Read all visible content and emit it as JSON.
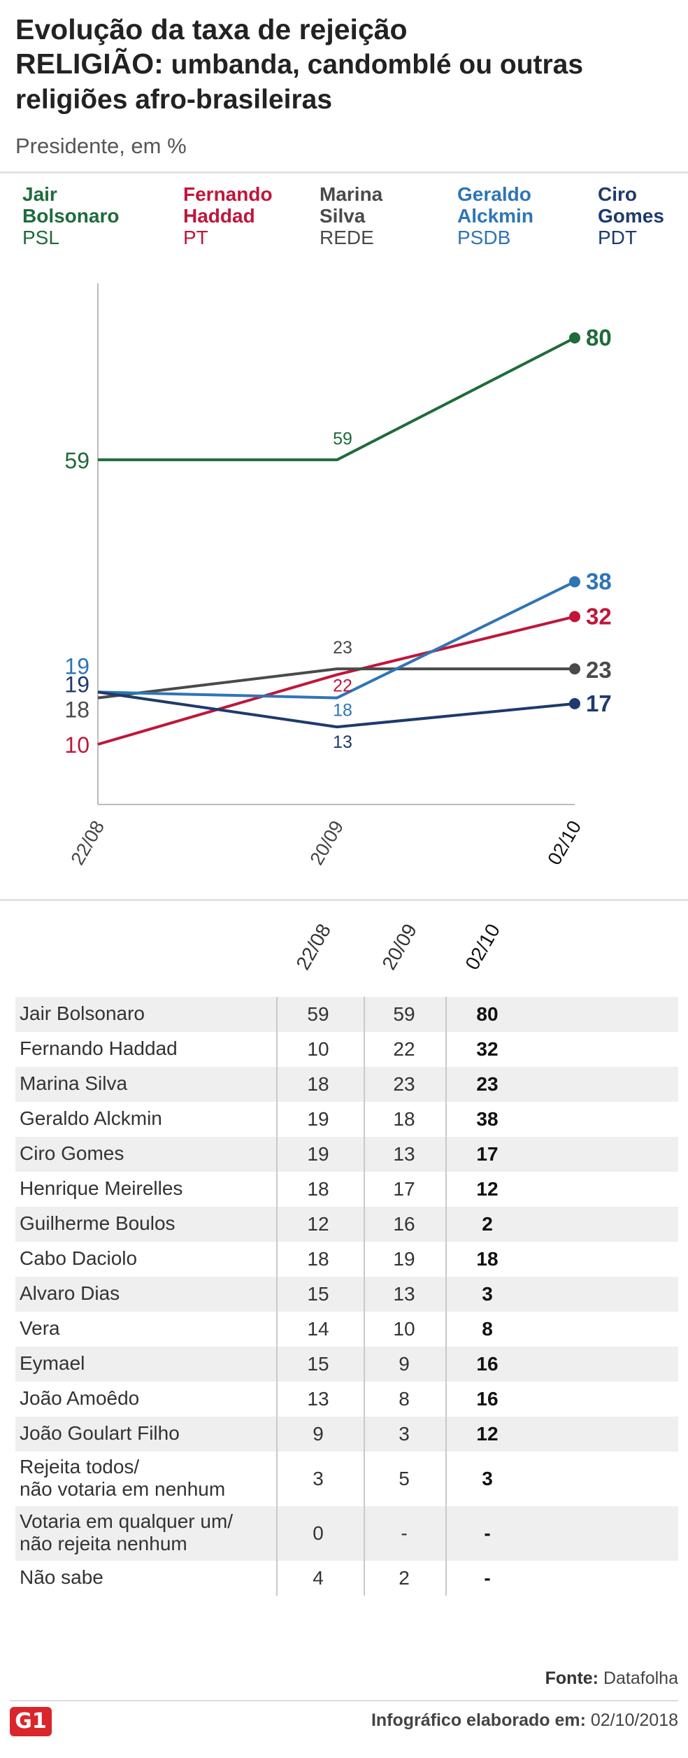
{
  "title_line1": "Evolução da taxa de rejeição",
  "title_line2_bold": "RELIGIÃO:",
  "title_line2_rest": " umbanda, candomblé ou outras religiões afro-brasileiras",
  "subtitle": "Presidente, em %",
  "colors": {
    "bolsonaro": "#1f6b3a",
    "haddad": "#c0163a",
    "marina": "#4a4a4a",
    "alckmin": "#2e75b6",
    "ciro": "#1e3a6e"
  },
  "legend": [
    {
      "name_l1": "Jair",
      "name_l2": "Bolsonaro",
      "party": "PSL",
      "color": "#1f6b3a"
    },
    {
      "name_l1": "Fernando",
      "name_l2": "Haddad",
      "party": "PT",
      "color": "#c0163a"
    },
    {
      "name_l1": "Marina",
      "name_l2": "Silva",
      "party": "REDE",
      "color": "#4a4a4a"
    },
    {
      "name_l1": "Geraldo",
      "name_l2": "Alckmin",
      "party": "PSDB",
      "color": "#2e75b6"
    },
    {
      "name_l1": "Ciro",
      "name_l2": "Gomes",
      "party": "PDT",
      "color": "#1e3a6e"
    }
  ],
  "chart_data": {
    "type": "line",
    "x": [
      "22/08",
      "20/09",
      "02/10"
    ],
    "series": [
      {
        "name": "Jair Bolsonaro",
        "values": [
          59,
          59,
          80
        ],
        "color": "#1f6b3a"
      },
      {
        "name": "Fernando Haddad",
        "values": [
          10,
          22,
          32
        ],
        "color": "#c0163a"
      },
      {
        "name": "Marina Silva",
        "values": [
          18,
          23,
          23
        ],
        "color": "#4a4a4a"
      },
      {
        "name": "Geraldo Alckmin",
        "values": [
          19,
          18,
          38
        ],
        "color": "#2e75b6"
      },
      {
        "name": "Ciro Gomes",
        "values": [
          19,
          13,
          17
        ],
        "color": "#1e3a6e"
      }
    ],
    "ylim": [
      0,
      80
    ],
    "grid": false,
    "legend_position": "top"
  },
  "table": {
    "headers": [
      "22/08",
      "20/09",
      "02/10"
    ],
    "rows": [
      {
        "name": [
          "Jair Bolsonaro"
        ],
        "v": [
          "59",
          "59",
          "80"
        ]
      },
      {
        "name": [
          "Fernando Haddad"
        ],
        "v": [
          "10",
          "22",
          "32"
        ]
      },
      {
        "name": [
          "Marina Silva"
        ],
        "v": [
          "18",
          "23",
          "23"
        ]
      },
      {
        "name": [
          "Geraldo Alckmin"
        ],
        "v": [
          "19",
          "18",
          "38"
        ]
      },
      {
        "name": [
          "Ciro Gomes"
        ],
        "v": [
          "19",
          "13",
          "17"
        ]
      },
      {
        "name": [
          "Henrique Meirelles"
        ],
        "v": [
          "18",
          "17",
          "12"
        ]
      },
      {
        "name": [
          "Guilherme Boulos"
        ],
        "v": [
          "12",
          "16",
          "2"
        ]
      },
      {
        "name": [
          "Cabo Daciolo"
        ],
        "v": [
          "18",
          "19",
          "18"
        ]
      },
      {
        "name": [
          "Alvaro Dias"
        ],
        "v": [
          "15",
          "13",
          "3"
        ]
      },
      {
        "name": [
          "Vera"
        ],
        "v": [
          "14",
          "10",
          "8"
        ]
      },
      {
        "name": [
          "Eymael"
        ],
        "v": [
          "15",
          "9",
          "16"
        ]
      },
      {
        "name": [
          "João Amoêdo"
        ],
        "v": [
          "13",
          "8",
          "16"
        ]
      },
      {
        "name": [
          "João Goulart Filho"
        ],
        "v": [
          "9",
          "3",
          "12"
        ]
      },
      {
        "name": [
          "Rejeita todos/",
          "não votaria em nenhum"
        ],
        "v": [
          "3",
          "5",
          "3"
        ]
      },
      {
        "name": [
          "Votaria em qualquer um/",
          "não rejeita nenhum"
        ],
        "v": [
          "0",
          "-",
          "-"
        ]
      },
      {
        "name": [
          "Não sabe"
        ],
        "v": [
          "4",
          "2",
          "-"
        ]
      }
    ]
  },
  "footer": {
    "source_label": "Fonte:",
    "source": "Datafolha",
    "made_label": "Infográfico elaborado em:",
    "made_date": "02/10/2018",
    "logo": "G1"
  }
}
